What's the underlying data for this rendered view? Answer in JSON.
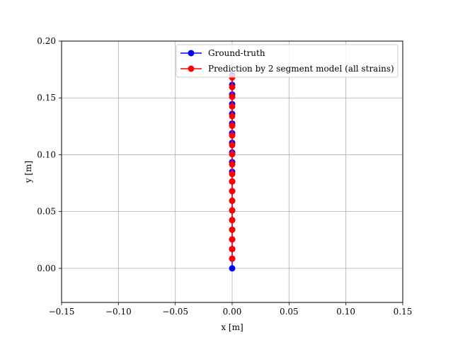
{
  "chart_data": {
    "type": "line",
    "xlabel": "x [m]",
    "ylabel": "y [m]",
    "xlim": [
      -0.15,
      0.15
    ],
    "ylim": [
      -0.03,
      0.2
    ],
    "xticks": [
      -0.15,
      -0.1,
      -0.05,
      0.0,
      0.05,
      0.1,
      0.15
    ],
    "xtick_labels": [
      "−0.15",
      "−0.10",
      "−0.05",
      "0.00",
      "0.05",
      "0.10",
      "0.15"
    ],
    "yticks": [
      0.0,
      0.05,
      0.1,
      0.15,
      0.2
    ],
    "ytick_labels": [
      "0.00",
      "0.05",
      "0.10",
      "0.15",
      "0.20"
    ],
    "grid": true,
    "legend_position": "top-right",
    "series": [
      {
        "name": "Ground-truth",
        "color": "#0000ff",
        "x": [
          0,
          0,
          0,
          0,
          0,
          0,
          0,
          0,
          0,
          0,
          0,
          0,
          0,
          0,
          0,
          0,
          0,
          0,
          0,
          0,
          0
        ],
        "y": [
          0.0,
          0.0085,
          0.017,
          0.0255,
          0.034,
          0.0425,
          0.051,
          0.0595,
          0.068,
          0.0765,
          0.085,
          0.0935,
          0.102,
          0.1105,
          0.119,
          0.1275,
          0.136,
          0.1445,
          0.153,
          0.1615,
          0.17
        ]
      },
      {
        "name": "Prediction by 2 segment model (all strains)",
        "color": "#ff0000",
        "x": [
          0,
          0,
          0,
          0,
          0,
          0,
          0,
          0,
          0,
          0,
          0,
          0,
          0,
          0,
          0,
          0,
          0,
          0,
          0,
          0
        ],
        "y": [
          0.0085,
          0.017,
          0.0255,
          0.034,
          0.0425,
          0.051,
          0.0595,
          0.068,
          0.0765,
          0.083,
          0.0915,
          0.1005,
          0.1085,
          0.117,
          0.1255,
          0.134,
          0.1425,
          0.151,
          0.1595,
          0.168
        ]
      }
    ]
  }
}
